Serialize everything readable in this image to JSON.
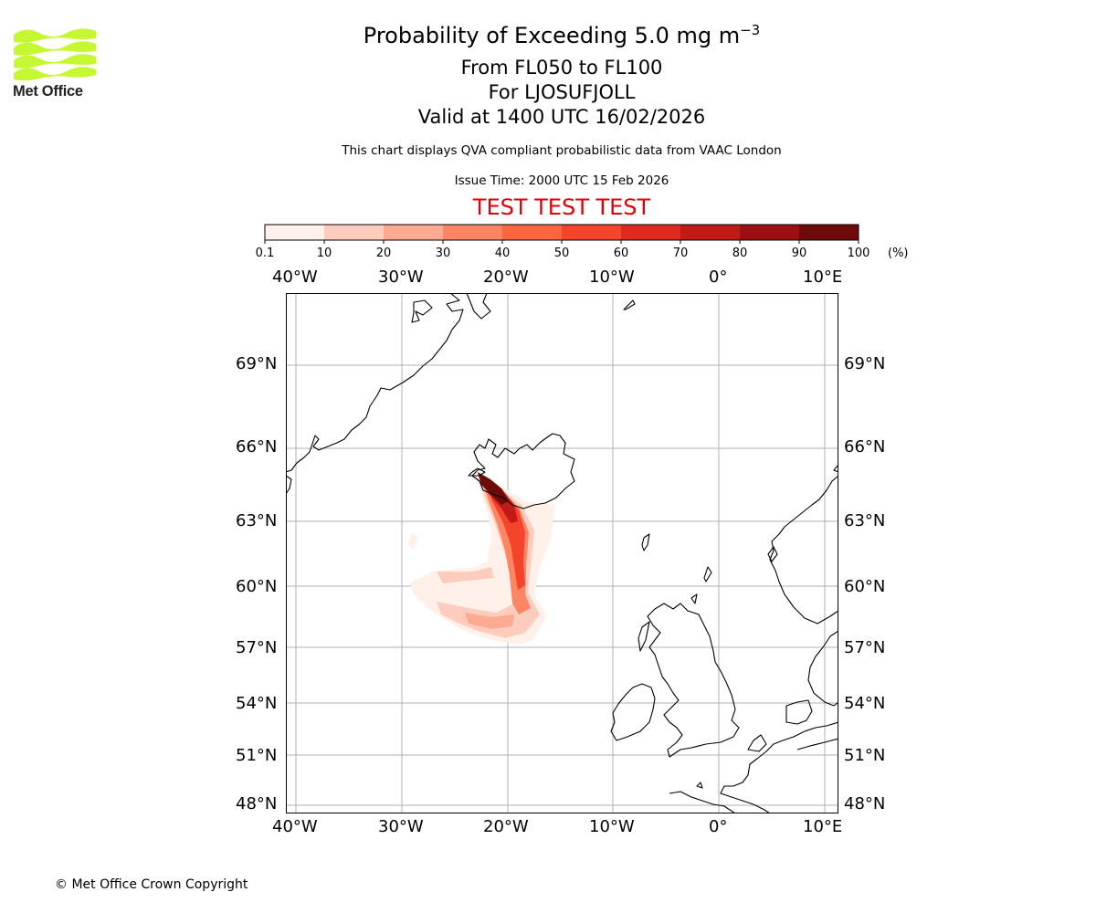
{
  "logo": {
    "text": "Met Office",
    "color": "#c6f832"
  },
  "header": {
    "title_main": "Probability of Exceeding 5.0 mg m",
    "title_superscript": "−3",
    "flight_levels": "From FL050 to FL100",
    "volcano": "For LJOSUFJOLL",
    "valid_time": "Valid at 1400 UTC 16/02/2026",
    "subtitle": "This chart displays QVA compliant probabilistic data from VAAC London",
    "issue_time": "Issue Time: 2000 UTC 15 Feb 2026",
    "test_banner": "TEST TEST TEST",
    "test_banner_color": "#e0000a"
  },
  "colorbar": {
    "ticks": [
      "0.1",
      "10",
      "20",
      "30",
      "40",
      "50",
      "60",
      "70",
      "80",
      "90",
      "100"
    ],
    "unit": "(%)",
    "colors": [
      "#fff0ea",
      "#fdccbc",
      "#fcaa91",
      "#fc8564",
      "#fb6641",
      "#f4442c",
      "#e02a20",
      "#c21a17",
      "#9d0f11",
      "#6f0a0a"
    ]
  },
  "map": {
    "lon_labels": [
      "40°W",
      "30°W",
      "20°W",
      "10°W",
      "0°",
      "10°E"
    ],
    "lat_labels": [
      "69°N",
      "66°N",
      "63°N",
      "60°N",
      "57°N",
      "54°N",
      "51°N",
      "48°N"
    ]
  },
  "footer": {
    "copyright": "© Met Office Crown Copyright"
  }
}
